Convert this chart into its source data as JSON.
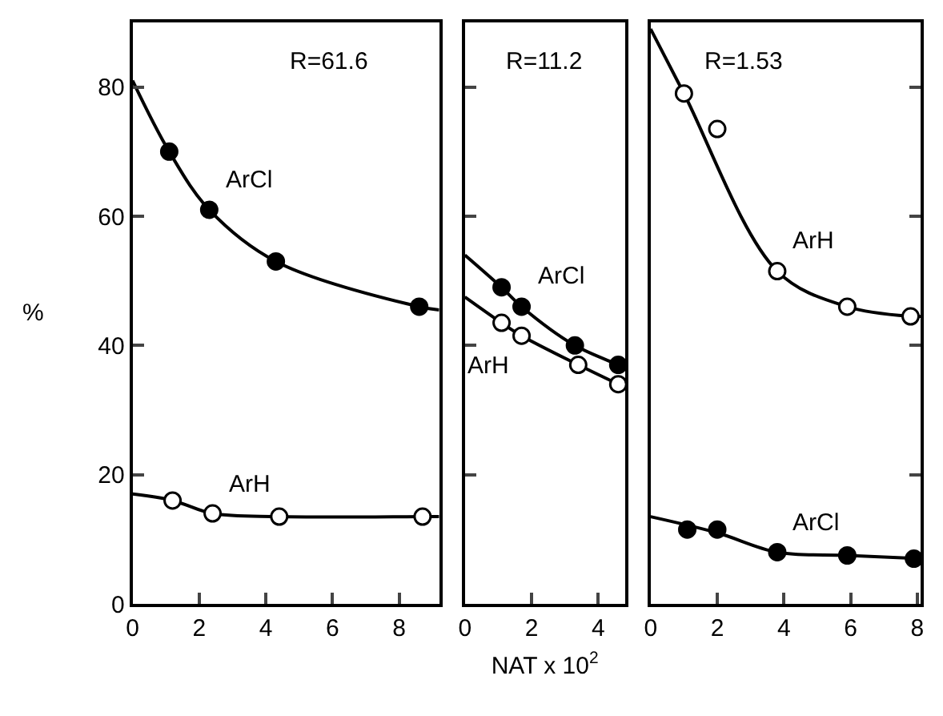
{
  "chart_data": [
    {
      "type": "scatter",
      "title": "R=61.6",
      "ylabel": "%",
      "marker": "circle",
      "xlim": [
        0,
        9.2
      ],
      "xticks": [
        0,
        2,
        4,
        6,
        8
      ],
      "ylim": [
        0,
        90
      ],
      "yticks": [
        0,
        20,
        40,
        60,
        80
      ],
      "series": [
        {
          "type": "line",
          "marker": "none",
          "color": "#000000",
          "x": [
            0,
            1.1,
            2.3,
            4.3,
            8.6,
            9.2
          ],
          "values": [
            81,
            70,
            61,
            53,
            46,
            45.5
          ]
        },
        {
          "type": "line",
          "marker": "none",
          "color": "#000000",
          "x": [
            0,
            1.2,
            2.4,
            4.4,
            8.7,
            9.2
          ],
          "values": [
            17,
            16,
            14,
            13.5,
            13.5,
            13.5
          ]
        },
        {
          "name": "ArCl",
          "color": "#000000",
          "x": [
            1.1,
            2.3,
            4.3,
            8.6
          ],
          "values": [
            70,
            61,
            53,
            46
          ]
        },
        {
          "name": "ArH",
          "color": "#ffffff",
          "x": [
            1.2,
            2.4,
            4.4,
            8.7
          ],
          "values": [
            16,
            14,
            13.5,
            13.5
          ]
        }
      ]
    },
    {
      "type": "scatter",
      "title": "R=11.2",
      "xlabel": "NAT x 10$^{2}$",
      "marker": "circle",
      "tick_labels": "x",
      "xlim": [
        0,
        4.8
      ],
      "xticks": [
        0,
        2,
        4
      ],
      "ylim": [
        0,
        90
      ],
      "yticks": [
        0,
        20,
        40,
        60,
        80
      ],
      "series": [
        {
          "type": "line",
          "marker": "none",
          "color": "#000000",
          "x": [
            0,
            1.1,
            1.7,
            3.3,
            4.6,
            4.8
          ],
          "values": [
            54,
            49,
            46,
            40,
            37,
            36.5
          ]
        },
        {
          "type": "line",
          "marker": "none",
          "color": "#000000",
          "x": [
            0,
            1.1,
            1.7,
            3.4,
            4.6,
            4.8
          ],
          "values": [
            47.5,
            43.5,
            41.5,
            37,
            34,
            33.5
          ]
        },
        {
          "name": "ArCl",
          "color": "#000000",
          "x": [
            1.1,
            1.7,
            3.3,
            4.6
          ],
          "values": [
            49,
            46,
            40,
            37
          ]
        },
        {
          "name": "ArH",
          "color": "#ffffff",
          "x": [
            1.1,
            1.7,
            3.4,
            4.6
          ],
          "values": [
            43.5,
            41.5,
            37,
            34
          ]
        }
      ]
    },
    {
      "type": "scatter",
      "title": "R=1.53",
      "marker": "circle",
      "tick_labels": "x",
      "xlim": [
        0,
        8.1
      ],
      "xticks": [
        0,
        2,
        4,
        6,
        8
      ],
      "ylim": [
        0,
        90
      ],
      "yticks": [
        0,
        20,
        40,
        60,
        80
      ],
      "series": [
        {
          "type": "line",
          "marker": "none",
          "color": "#000000",
          "x": [
            0,
            1,
            3.8,
            5.9,
            7.8,
            8.1
          ],
          "values": [
            89,
            79,
            51.5,
            46,
            44.5,
            44.5
          ]
        },
        {
          "type": "line",
          "marker": "none",
          "color": "#000000",
          "x": [
            0,
            2,
            3.8,
            5.9,
            8.1
          ],
          "values": [
            13.5,
            11,
            8,
            7.5,
            7
          ]
        },
        {
          "name": "ArH",
          "color": "#ffffff",
          "x": [
            1,
            2,
            3.8,
            5.9,
            7.8
          ],
          "values": [
            79,
            73.5,
            51.5,
            46,
            44.5
          ]
        },
        {
          "name": "ArCl",
          "color": "#000000",
          "x": [
            1.1,
            2,
            3.8,
            5.9,
            7.9
          ],
          "values": [
            11.5,
            11.5,
            8,
            7.5,
            7
          ]
        }
      ]
    }
  ]
}
